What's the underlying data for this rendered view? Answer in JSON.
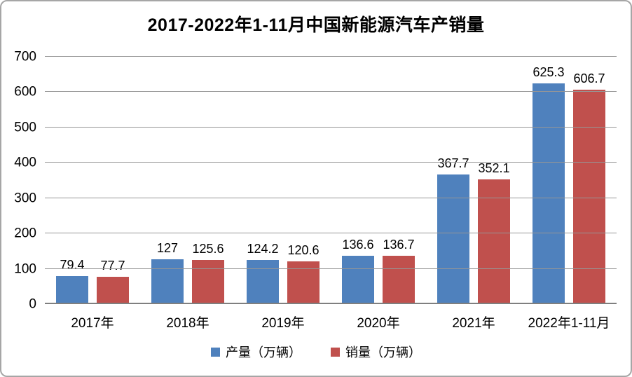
{
  "chart_data": {
    "type": "bar",
    "title": "2017-2022年1-11月中国新能源汽车产销量",
    "categories": [
      "2017年",
      "2018年",
      "2019年",
      "2020年",
      "2021年",
      "2022年1-11月"
    ],
    "series": [
      {
        "name": "产量（万辆）",
        "color": "#4F81BD",
        "values": [
          79.4,
          127,
          124.2,
          136.6,
          367.7,
          625.3
        ]
      },
      {
        "name": "销量（万辆）",
        "color": "#C0504D",
        "values": [
          77.7,
          125.6,
          120.6,
          136.7,
          352.1,
          606.7
        ]
      }
    ],
    "ylim": [
      0,
      700
    ],
    "yticks": [
      0,
      100,
      200,
      300,
      400,
      500,
      600,
      700
    ],
    "grid": true,
    "legend_position": "bottom",
    "colors": {
      "gridline": "#969696",
      "axis": "#7f7f7f",
      "frame_border": "#a6a6a6",
      "text": "#000000",
      "background": "#ffffff"
    }
  }
}
